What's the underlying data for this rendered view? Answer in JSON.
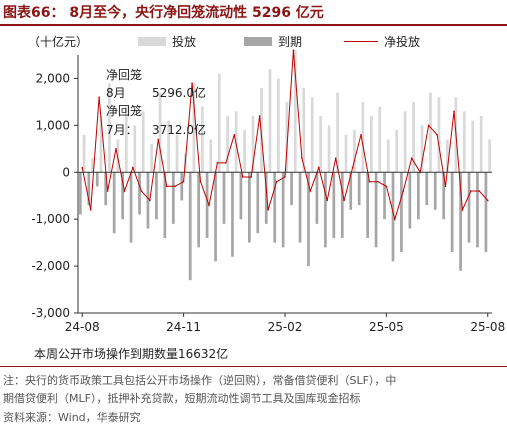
{
  "title": "图表66：  8月至今，央行净回笼流动性 5296 亿元",
  "unit": "（十亿元）",
  "legend": [
    {
      "label": "投放",
      "color": "#d9d9d9",
      "kind": "box"
    },
    {
      "label": "到期",
      "color": "#a6a6a6",
      "kind": "box"
    },
    {
      "label": "净投放",
      "color": "#c00000",
      "kind": "line"
    }
  ],
  "annotations": {
    "aug_head": "净回笼",
    "aug_label": "8月",
    "aug_value": "5296.0亿",
    "jul_head": "净回笼",
    "jul_label": "7月：",
    "jul_value": "3712.0亿"
  },
  "summary": "本周公开市场操作到期数量16632亿",
  "notes": [
    "注：央行的货币政策工具包括公开市场操作（逆回购），常备借贷便利（SLF），中",
    "期借贷便利（MLF），抵押补充贷款，短期流动性调节工具及国库现金招标",
    "资料来源：Wind，华泰研究"
  ],
  "chart_data": {
    "type": "bar",
    "ylim": [
      -3000,
      2500
    ],
    "yticks": [
      -3000,
      -2000,
      -1000,
      0,
      1000,
      2000
    ],
    "ytick_labels": [
      "-3,000",
      "-2,000",
      "-1,000",
      "0",
      "1,000",
      "2,000"
    ],
    "xtick_labels": [
      "24-08",
      "24-11",
      "25-02",
      "25-05",
      "25-08"
    ],
    "xtick_index": [
      0,
      12,
      24,
      36,
      48
    ],
    "n_points": 49,
    "series": [
      {
        "name": "投放",
        "color": "#d9d9d9",
        "values": [
          800,
          300,
          1200,
          1900,
          700,
          1400,
          1000,
          1300,
          600,
          1700,
          1100,
          800,
          400,
          1900,
          1400,
          700,
          2100,
          1200,
          1300,
          900,
          1200,
          1800,
          2200,
          2000,
          1500,
          2600,
          1800,
          1600,
          1200,
          1000,
          1700,
          800,
          900,
          1500,
          1200,
          1400,
          700,
          900,
          1300,
          1500,
          1000,
          1700,
          1600,
          700,
          1600,
          1300,
          1100,
          1200,
          700
        ]
      },
      {
        "name": "到期",
        "color": "#a6a6a6",
        "values": [
          -900,
          -700,
          -300,
          -700,
          -1300,
          -1000,
          -1500,
          -900,
          -1200,
          -1000,
          -1400,
          -1100,
          -600,
          -2300,
          -1600,
          -1400,
          -1900,
          -1100,
          -1800,
          -1000,
          -1500,
          -1300,
          -1100,
          -1500,
          -1600,
          -700,
          -1500,
          -2000,
          -1100,
          -1600,
          -1400,
          -1400,
          -800,
          -700,
          -1400,
          -1600,
          -1000,
          -1900,
          -1700,
          -1200,
          -1000,
          -700,
          -800,
          -1000,
          -1700,
          -2100,
          -1500,
          -1600,
          -1700
        ]
      },
      {
        "name": "净投放",
        "color": "#c00000",
        "values": [
          100,
          -800,
          1600,
          -400,
          500,
          -400,
          100,
          -400,
          -600,
          700,
          -300,
          -300,
          -200,
          1900,
          -200,
          -700,
          200,
          200,
          800,
          -100,
          -100,
          1200,
          -800,
          -200,
          -100,
          2600,
          300,
          -400,
          100,
          -600,
          300,
          -600,
          100,
          800,
          -200,
          -200,
          -300,
          -1000,
          -400,
          300,
          0,
          1000,
          800,
          -300,
          1300,
          -800,
          -400,
          -400,
          -600
        ]
      }
    ]
  }
}
